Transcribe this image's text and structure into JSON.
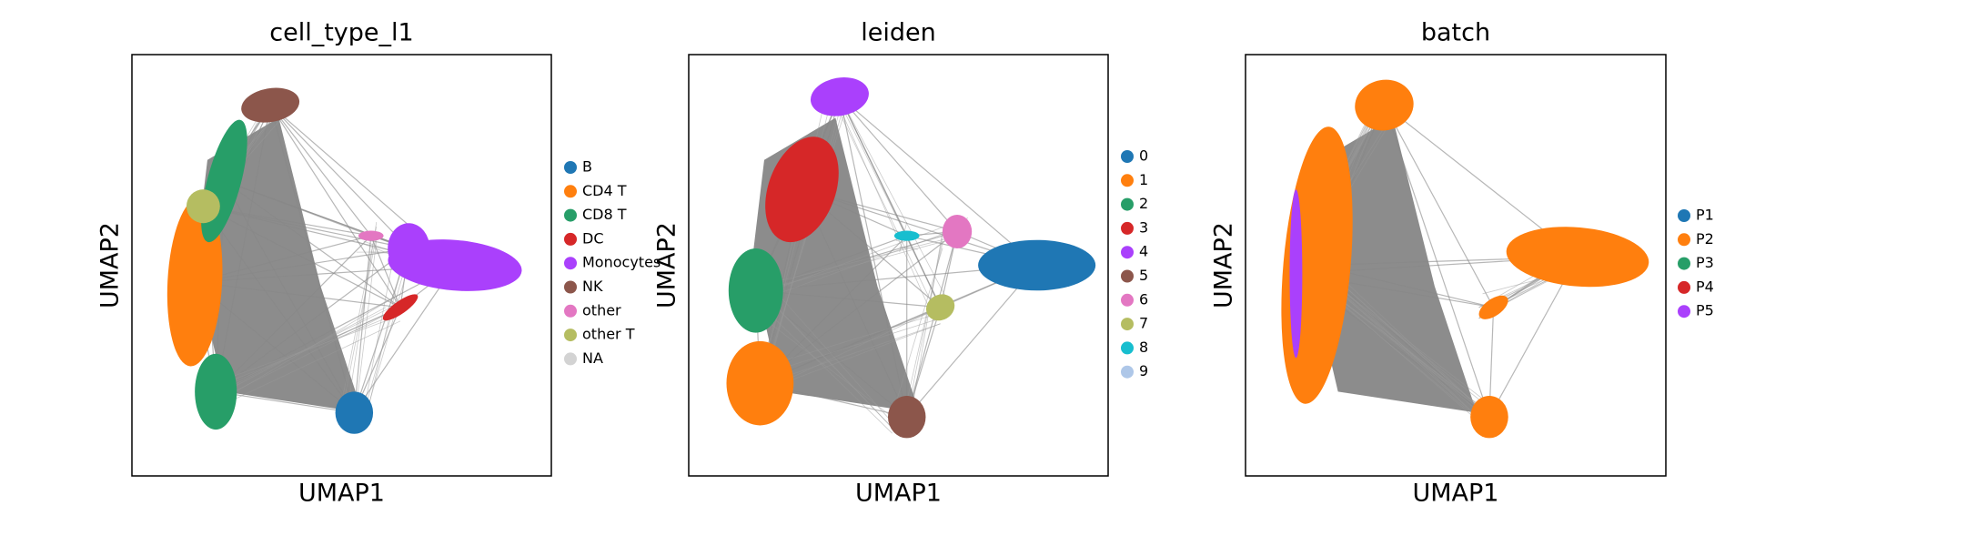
{
  "chart_data": [
    {
      "type": "scatter",
      "title": "cell_type_l1",
      "x_label": "UMAP1",
      "y_label": "UMAP2",
      "series": [
        {
          "name": "B",
          "color": "#1f77b4"
        },
        {
          "name": "CD4 T",
          "color": "#ff7f0e"
        },
        {
          "name": "CD8 T",
          "color": "#279e68"
        },
        {
          "name": "DC",
          "color": "#d62728"
        },
        {
          "name": "Monocytes",
          "color": "#aa40fc"
        },
        {
          "name": "NK",
          "color": "#8c564b"
        },
        {
          "name": "other",
          "color": "#e377c2"
        },
        {
          "name": "other T",
          "color": "#b5bd61"
        },
        {
          "name": "NA",
          "color": "#d3d3d3"
        }
      ]
    },
    {
      "type": "scatter",
      "title": "leiden",
      "x_label": "UMAP1",
      "y_label": "UMAP2",
      "series": [
        {
          "name": "0",
          "color": "#1f77b4"
        },
        {
          "name": "1",
          "color": "#ff7f0e"
        },
        {
          "name": "2",
          "color": "#279e68"
        },
        {
          "name": "3",
          "color": "#d62728"
        },
        {
          "name": "4",
          "color": "#aa40fc"
        },
        {
          "name": "5",
          "color": "#8c564b"
        },
        {
          "name": "6",
          "color": "#e377c2"
        },
        {
          "name": "7",
          "color": "#b5bd61"
        },
        {
          "name": "8",
          "color": "#17becf"
        },
        {
          "name": "9",
          "color": "#aec7e8"
        }
      ]
    },
    {
      "type": "scatter",
      "title": "batch",
      "x_label": "UMAP1",
      "y_label": "UMAP2",
      "series": [
        {
          "name": "P1",
          "color": "#1f77b4"
        },
        {
          "name": "P2",
          "color": "#ff7f0e"
        },
        {
          "name": "P3",
          "color": "#279e68"
        },
        {
          "name": "P4",
          "color": "#d62728"
        },
        {
          "name": "P5",
          "color": "#aa40fc"
        }
      ]
    }
  ]
}
